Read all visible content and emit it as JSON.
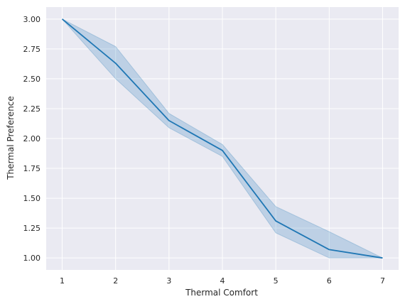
{
  "chart_data": {
    "type": "line",
    "xlabel": "Thermal Comfort",
    "ylabel": "Thermal Preference",
    "x": [
      1,
      2,
      3,
      4,
      5,
      6,
      7
    ],
    "series": [
      {
        "values": [
          3.0,
          2.63,
          2.15,
          1.9,
          1.31,
          1.07,
          1.0
        ],
        "ci_lower": [
          3.0,
          2.5,
          2.09,
          1.85,
          1.21,
          1.0,
          1.0
        ],
        "ci_upper": [
          3.0,
          2.77,
          2.21,
          1.95,
          1.43,
          1.22,
          1.0
        ]
      }
    ],
    "xticks": [
      "1",
      "2",
      "3",
      "4",
      "5",
      "6",
      "7"
    ],
    "yticks": [
      "1.00",
      "1.25",
      "1.50",
      "1.75",
      "2.00",
      "2.25",
      "2.50",
      "2.75",
      "3.00"
    ],
    "xlim": [
      0.7,
      7.3
    ],
    "ylim": [
      0.9,
      3.1
    ],
    "grid": true,
    "colors": {
      "line": "#1f77b4",
      "band": "#1f77b4",
      "background": "#eaeaf2",
      "grid": "#ffffff"
    }
  }
}
